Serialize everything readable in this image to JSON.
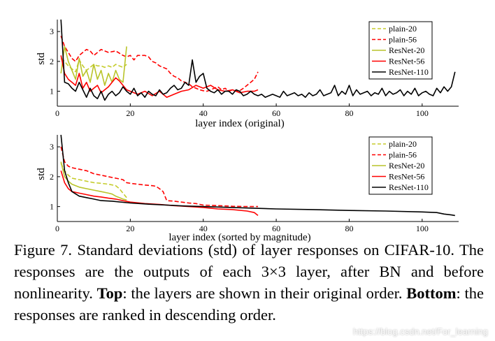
{
  "chart_data": [
    {
      "type": "line",
      "title": "",
      "xlabel": "layer index (original)",
      "ylabel": "std",
      "xlim": [
        0,
        110
      ],
      "ylim": [
        0.5,
        3.4
      ],
      "xticks": [
        0,
        20,
        40,
        60,
        80,
        100
      ],
      "yticks": [
        1,
        2,
        3
      ],
      "legend_position": "top-right",
      "series": [
        {
          "name": "plain-20",
          "color": "#c5cc2b",
          "dash": "dashed",
          "x": [
            1,
            2,
            3,
            4,
            5,
            6,
            7,
            8,
            9,
            10,
            11,
            12,
            13,
            14,
            15,
            16,
            17,
            18,
            19
          ],
          "y": [
            2.1,
            2.0,
            1.85,
            1.75,
            1.65,
            2.05,
            1.85,
            1.7,
            1.8,
            1.9,
            1.85,
            1.85,
            1.8,
            1.85,
            1.8,
            1.9,
            1.85,
            1.8,
            1.9
          ]
        },
        {
          "name": "plain-56",
          "color": "#ff0000",
          "dash": "dashed",
          "x": [
            1,
            2,
            3,
            4,
            5,
            6,
            7,
            8,
            9,
            10,
            12,
            14,
            16,
            18,
            19,
            20,
            21,
            22,
            23,
            24,
            25,
            26,
            27,
            28,
            29,
            30,
            31,
            32,
            33,
            34,
            35,
            36,
            37,
            38,
            39,
            40,
            41,
            42,
            43,
            44,
            45,
            46,
            47,
            48,
            49,
            50,
            51,
            52,
            53,
            54,
            55
          ],
          "y": [
            2.85,
            2.5,
            2.3,
            2.1,
            2.0,
            2.2,
            2.3,
            2.4,
            2.35,
            2.2,
            2.4,
            2.3,
            2.35,
            2.2,
            2.15,
            2.2,
            2.05,
            2.2,
            2.2,
            2.2,
            2.15,
            2.0,
            1.95,
            1.85,
            1.8,
            1.75,
            1.6,
            1.5,
            1.45,
            1.35,
            1.3,
            1.25,
            1.15,
            1.1,
            1.05,
            1.02,
            1.0,
            1.05,
            1.1,
            1.15,
            1.05,
            1.1,
            1.0,
            1.05,
            1.0,
            1.02,
            1.1,
            1.2,
            1.3,
            1.4,
            1.65
          ]
        },
        {
          "name": "ResNet-20",
          "color": "#b9c42a",
          "dash": "solid",
          "x": [
            1,
            2,
            3,
            4,
            5,
            6,
            7,
            8,
            9,
            10,
            11,
            12,
            13,
            14,
            15,
            16,
            17,
            18,
            19
          ],
          "y": [
            1.6,
            2.5,
            2.0,
            1.7,
            1.4,
            2.1,
            1.5,
            1.7,
            1.3,
            1.9,
            1.4,
            1.7,
            1.2,
            1.6,
            1.3,
            1.7,
            1.4,
            1.3,
            2.5
          ]
        },
        {
          "name": "ResNet-56",
          "color": "#ff0000",
          "dash": "solid",
          "x": [
            1,
            2,
            3,
            4,
            5,
            6,
            7,
            8,
            9,
            10,
            11,
            12,
            13,
            14,
            15,
            16,
            17,
            18,
            19,
            20,
            22,
            24,
            26,
            28,
            30,
            32,
            34,
            36,
            38,
            40,
            42,
            44,
            46,
            48,
            50,
            52,
            54,
            55
          ],
          "y": [
            2.2,
            1.6,
            1.4,
            1.3,
            1.2,
            1.6,
            1.1,
            1.3,
            1.0,
            1.1,
            1.2,
            0.95,
            1.05,
            1.15,
            1.3,
            1.45,
            1.35,
            1.2,
            1.05,
            1.0,
            0.9,
            1.0,
            0.85,
            1.0,
            0.8,
            0.9,
            1.0,
            1.05,
            1.2,
            1.1,
            1.2,
            1.05,
            1.0,
            1.05,
            0.95,
            1.0,
            1.0,
            1.05
          ]
        },
        {
          "name": "ResNet-110",
          "color": "#000000",
          "dash": "solid",
          "x": [
            1,
            2,
            3,
            4,
            5,
            6,
            7,
            8,
            9,
            10,
            11,
            12,
            13,
            14,
            15,
            16,
            17,
            18,
            19,
            20,
            21,
            22,
            23,
            24,
            25,
            26,
            27,
            28,
            29,
            30,
            31,
            32,
            33,
            34,
            35,
            36,
            37,
            38,
            39,
            40,
            41,
            42,
            43,
            44,
            45,
            46,
            47,
            48,
            49,
            50,
            51,
            52,
            53,
            54,
            55,
            56,
            57,
            58,
            59,
            60,
            61,
            62,
            63,
            64,
            65,
            66,
            67,
            68,
            69,
            70,
            71,
            72,
            73,
            74,
            75,
            76,
            77,
            78,
            79,
            80,
            81,
            82,
            83,
            84,
            85,
            86,
            87,
            88,
            89,
            90,
            91,
            92,
            93,
            94,
            95,
            96,
            97,
            98,
            99,
            100,
            101,
            102,
            103,
            104,
            105,
            106,
            107,
            108,
            109
          ],
          "y": [
            3.4,
            1.3,
            1.25,
            1.1,
            1.0,
            1.3,
            1.05,
            0.8,
            1.1,
            0.85,
            0.75,
            1.0,
            0.7,
            0.9,
            1.0,
            0.85,
            0.95,
            1.15,
            1.0,
            0.9,
            1.1,
            0.85,
            0.95,
            0.8,
            1.0,
            0.9,
            0.85,
            1.05,
            0.9,
            0.95,
            1.1,
            1.2,
            1.05,
            1.1,
            1.3,
            1.2,
            2.05,
            1.3,
            1.5,
            1.6,
            1.1,
            1.0,
            0.95,
            1.05,
            0.9,
            1.0,
            1.0,
            0.9,
            1.05,
            1.0,
            0.85,
            0.9,
            1.0,
            0.9,
            0.85,
            0.9,
            0.8,
            0.85,
            0.9,
            0.85,
            0.8,
            1.0,
            0.85,
            0.9,
            0.95,
            0.85,
            0.9,
            0.8,
            0.95,
            0.85,
            0.9,
            1.05,
            0.85,
            0.9,
            0.95,
            1.2,
            0.85,
            1.0,
            0.9,
            1.2,
            0.85,
            1.05,
            0.9,
            0.95,
            1.0,
            0.85,
            0.95,
            0.9,
            1.1,
            0.85,
            1.0,
            0.9,
            0.95,
            1.05,
            0.85,
            1.0,
            0.9,
            1.1,
            0.85,
            0.95,
            1.0,
            0.9,
            0.85,
            1.1,
            0.95,
            1.15,
            1.0,
            1.15,
            1.65
          ]
        }
      ]
    },
    {
      "type": "line",
      "title": "",
      "xlabel": "layer index (sorted by magnitude)",
      "ylabel": "std",
      "xlim": [
        0,
        110
      ],
      "ylim": [
        0.5,
        3.4
      ],
      "xticks": [
        0,
        20,
        40,
        60,
        80,
        100
      ],
      "yticks": [
        1,
        2,
        3
      ],
      "legend_position": "top-right",
      "series": [
        {
          "name": "plain-20",
          "color": "#c5cc2b",
          "dash": "dashed",
          "x": [
            1,
            2,
            3,
            4,
            6,
            8,
            10,
            12,
            14,
            16,
            17,
            18,
            19
          ],
          "y": [
            2.45,
            2.2,
            2.05,
            1.95,
            1.9,
            1.85,
            1.8,
            1.78,
            1.75,
            1.7,
            1.6,
            1.45,
            1.3
          ]
        },
        {
          "name": "plain-56",
          "color": "#ff0000",
          "dash": "dashed",
          "x": [
            1,
            2,
            3,
            4,
            6,
            8,
            10,
            12,
            14,
            16,
            18,
            19,
            20,
            22,
            24,
            26,
            27,
            28,
            29,
            30,
            32,
            34,
            36,
            38,
            40,
            44,
            48,
            52,
            55
          ],
          "y": [
            3.0,
            2.5,
            2.35,
            2.3,
            2.25,
            2.2,
            2.1,
            2.05,
            2.0,
            1.95,
            1.9,
            1.8,
            1.78,
            1.75,
            1.72,
            1.7,
            1.68,
            1.6,
            1.5,
            1.2,
            1.18,
            1.15,
            1.12,
            1.1,
            1.05,
            1.03,
            1.01,
            1.0,
            1.0
          ]
        },
        {
          "name": "ResNet-20",
          "color": "#b9c42a",
          "dash": "solid",
          "x": [
            1,
            2,
            3,
            4,
            6,
            8,
            10,
            12,
            14,
            15,
            16,
            17,
            18,
            19
          ],
          "y": [
            2.5,
            2.0,
            1.85,
            1.75,
            1.65,
            1.6,
            1.55,
            1.5,
            1.45,
            1.42,
            1.35,
            1.3,
            1.25,
            1.22
          ]
        },
        {
          "name": "ResNet-56",
          "color": "#ff0000",
          "dash": "solid",
          "x": [
            1,
            2,
            3,
            4,
            6,
            8,
            10,
            12,
            14,
            16,
            18,
            20,
            24,
            28,
            32,
            36,
            40,
            44,
            48,
            52,
            54,
            55
          ],
          "y": [
            2.2,
            1.8,
            1.6,
            1.5,
            1.45,
            1.4,
            1.35,
            1.32,
            1.28,
            1.25,
            1.2,
            1.15,
            1.1,
            1.07,
            1.03,
            1.0,
            0.97,
            0.92,
            0.9,
            0.85,
            0.8,
            0.7
          ]
        },
        {
          "name": "ResNet-110",
          "color": "#000000",
          "dash": "solid",
          "x": [
            1,
            2,
            3,
            4,
            6,
            8,
            10,
            12,
            15,
            20,
            25,
            30,
            35,
            40,
            50,
            60,
            70,
            80,
            90,
            100,
            104,
            106,
            108,
            109
          ],
          "y": [
            3.4,
            2.2,
            1.8,
            1.5,
            1.35,
            1.3,
            1.25,
            1.2,
            1.18,
            1.12,
            1.08,
            1.05,
            1.02,
            1.0,
            0.96,
            0.92,
            0.9,
            0.87,
            0.85,
            0.82,
            0.8,
            0.75,
            0.72,
            0.7
          ]
        }
      ]
    }
  ],
  "caption": {
    "lead": "Figure 7. Standard deviations (std) of layer responses on CIFAR-10. The responses are the outputs of each 3×3 layer, after BN and before nonlinearity. ",
    "top_label": "Top",
    "middle": ": the layers are shown in their original order. ",
    "bottom_label": "Bottom",
    "tail": ": the responses are ranked in descending order."
  },
  "watermark": "https://blog.csdn.net/For_learning"
}
